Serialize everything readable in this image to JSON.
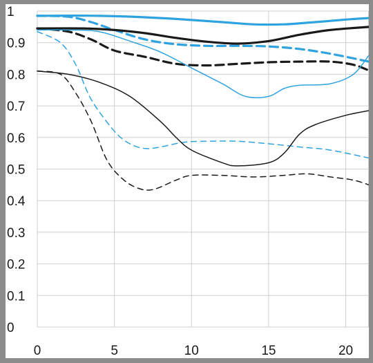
{
  "chart_data": {
    "type": "line",
    "title": "",
    "xlabel": "",
    "ylabel": "",
    "xlim": [
      0,
      21.5
    ],
    "ylim": [
      0,
      1
    ],
    "x_ticks": [
      0,
      5,
      10,
      15,
      20
    ],
    "y_ticks": [
      0,
      0.1,
      0.2,
      0.3,
      0.4,
      0.5,
      0.6,
      0.7,
      0.8,
      0.9,
      1
    ],
    "x_tick_labels": [
      "0",
      "5",
      "10",
      "15",
      "20"
    ],
    "y_tick_labels": [
      "0",
      "0.1",
      "0.2",
      "0.3",
      "0.4",
      "0.5",
      "0.6",
      "0.7",
      "0.8",
      "0.9",
      "1"
    ],
    "grid": true,
    "legend": "none",
    "colors": {
      "blue": "#2fa3e0",
      "black": "#1a1a1a",
      "grid": "#cfcfcf",
      "frame": "#8c8c8c"
    },
    "series": [
      {
        "color": "blue",
        "dash": "solid",
        "weight": "thick",
        "points": [
          [
            0,
            0.985
          ],
          [
            4,
            0.985
          ],
          [
            8,
            0.978
          ],
          [
            12,
            0.965
          ],
          [
            14,
            0.958
          ],
          [
            16,
            0.958
          ],
          [
            18,
            0.965
          ],
          [
            20,
            0.973
          ],
          [
            21.5,
            0.978
          ]
        ]
      },
      {
        "color": "blue",
        "dash": "dashed",
        "weight": "thick",
        "points": [
          [
            0,
            0.985
          ],
          [
            2,
            0.982
          ],
          [
            3.5,
            0.965
          ],
          [
            5,
            0.94
          ],
          [
            7,
            0.91
          ],
          [
            9,
            0.895
          ],
          [
            11,
            0.89
          ],
          [
            13,
            0.89
          ],
          [
            15,
            0.888
          ],
          [
            17,
            0.88
          ],
          [
            19,
            0.865
          ],
          [
            21.5,
            0.84
          ]
        ]
      },
      {
        "color": "black",
        "dash": "solid",
        "weight": "thick",
        "points": [
          [
            0,
            0.945
          ],
          [
            3,
            0.945
          ],
          [
            5,
            0.94
          ],
          [
            7,
            0.93
          ],
          [
            9,
            0.915
          ],
          [
            11,
            0.903
          ],
          [
            13,
            0.897
          ],
          [
            15,
            0.905
          ],
          [
            17,
            0.925
          ],
          [
            19,
            0.94
          ],
          [
            21.5,
            0.95
          ]
        ]
      },
      {
        "color": "black",
        "dash": "dashed",
        "weight": "thick",
        "points": [
          [
            0,
            0.945
          ],
          [
            2,
            0.935
          ],
          [
            3.5,
            0.91
          ],
          [
            5,
            0.875
          ],
          [
            7,
            0.855
          ],
          [
            9,
            0.833
          ],
          [
            11,
            0.828
          ],
          [
            13,
            0.833
          ],
          [
            15,
            0.838
          ],
          [
            17,
            0.84
          ],
          [
            19,
            0.84
          ],
          [
            20.5,
            0.83
          ],
          [
            21.5,
            0.812
          ]
        ]
      },
      {
        "color": "blue",
        "dash": "solid",
        "weight": "thin",
        "points": [
          [
            0,
            0.94
          ],
          [
            2,
            0.94
          ],
          [
            4,
            0.935
          ],
          [
            6,
            0.905
          ],
          [
            8,
            0.87
          ],
          [
            10,
            0.82
          ],
          [
            12,
            0.77
          ],
          [
            13.5,
            0.73
          ],
          [
            15,
            0.73
          ],
          [
            16,
            0.755
          ],
          [
            17,
            0.765
          ],
          [
            19,
            0.77
          ],
          [
            20.5,
            0.8
          ],
          [
            21.5,
            0.86
          ]
        ]
      },
      {
        "color": "blue",
        "dash": "dashed",
        "weight": "thin",
        "points": [
          [
            0,
            0.935
          ],
          [
            1.5,
            0.9
          ],
          [
            2.5,
            0.83
          ],
          [
            3.5,
            0.72
          ],
          [
            5,
            0.62
          ],
          [
            6,
            0.58
          ],
          [
            7,
            0.565
          ],
          [
            8,
            0.57
          ],
          [
            9.5,
            0.585
          ],
          [
            11,
            0.588
          ],
          [
            13,
            0.588
          ],
          [
            15,
            0.58
          ],
          [
            17,
            0.57
          ],
          [
            19,
            0.56
          ],
          [
            21.5,
            0.535
          ]
        ]
      },
      {
        "color": "black",
        "dash": "solid",
        "weight": "thin",
        "points": [
          [
            0,
            0.81
          ],
          [
            2,
            0.8
          ],
          [
            4,
            0.775
          ],
          [
            6,
            0.73
          ],
          [
            8,
            0.65
          ],
          [
            9,
            0.6
          ],
          [
            10,
            0.56
          ],
          [
            12,
            0.52
          ],
          [
            13,
            0.51
          ],
          [
            15,
            0.52
          ],
          [
            16,
            0.55
          ],
          [
            17,
            0.61
          ],
          [
            18,
            0.64
          ],
          [
            20,
            0.67
          ],
          [
            21.5,
            0.685
          ]
        ]
      },
      {
        "color": "black",
        "dash": "dashed",
        "weight": "thin",
        "points": [
          [
            0,
            0.81
          ],
          [
            1.5,
            0.8
          ],
          [
            2.5,
            0.74
          ],
          [
            3.5,
            0.65
          ],
          [
            4.5,
            0.53
          ],
          [
            5.5,
            0.47
          ],
          [
            6.5,
            0.44
          ],
          [
            7.5,
            0.435
          ],
          [
            9,
            0.465
          ],
          [
            10,
            0.48
          ],
          [
            12,
            0.48
          ],
          [
            14,
            0.475
          ],
          [
            16,
            0.48
          ],
          [
            17.5,
            0.485
          ],
          [
            19,
            0.475
          ],
          [
            20.5,
            0.465
          ],
          [
            21.5,
            0.45
          ]
        ]
      }
    ]
  }
}
